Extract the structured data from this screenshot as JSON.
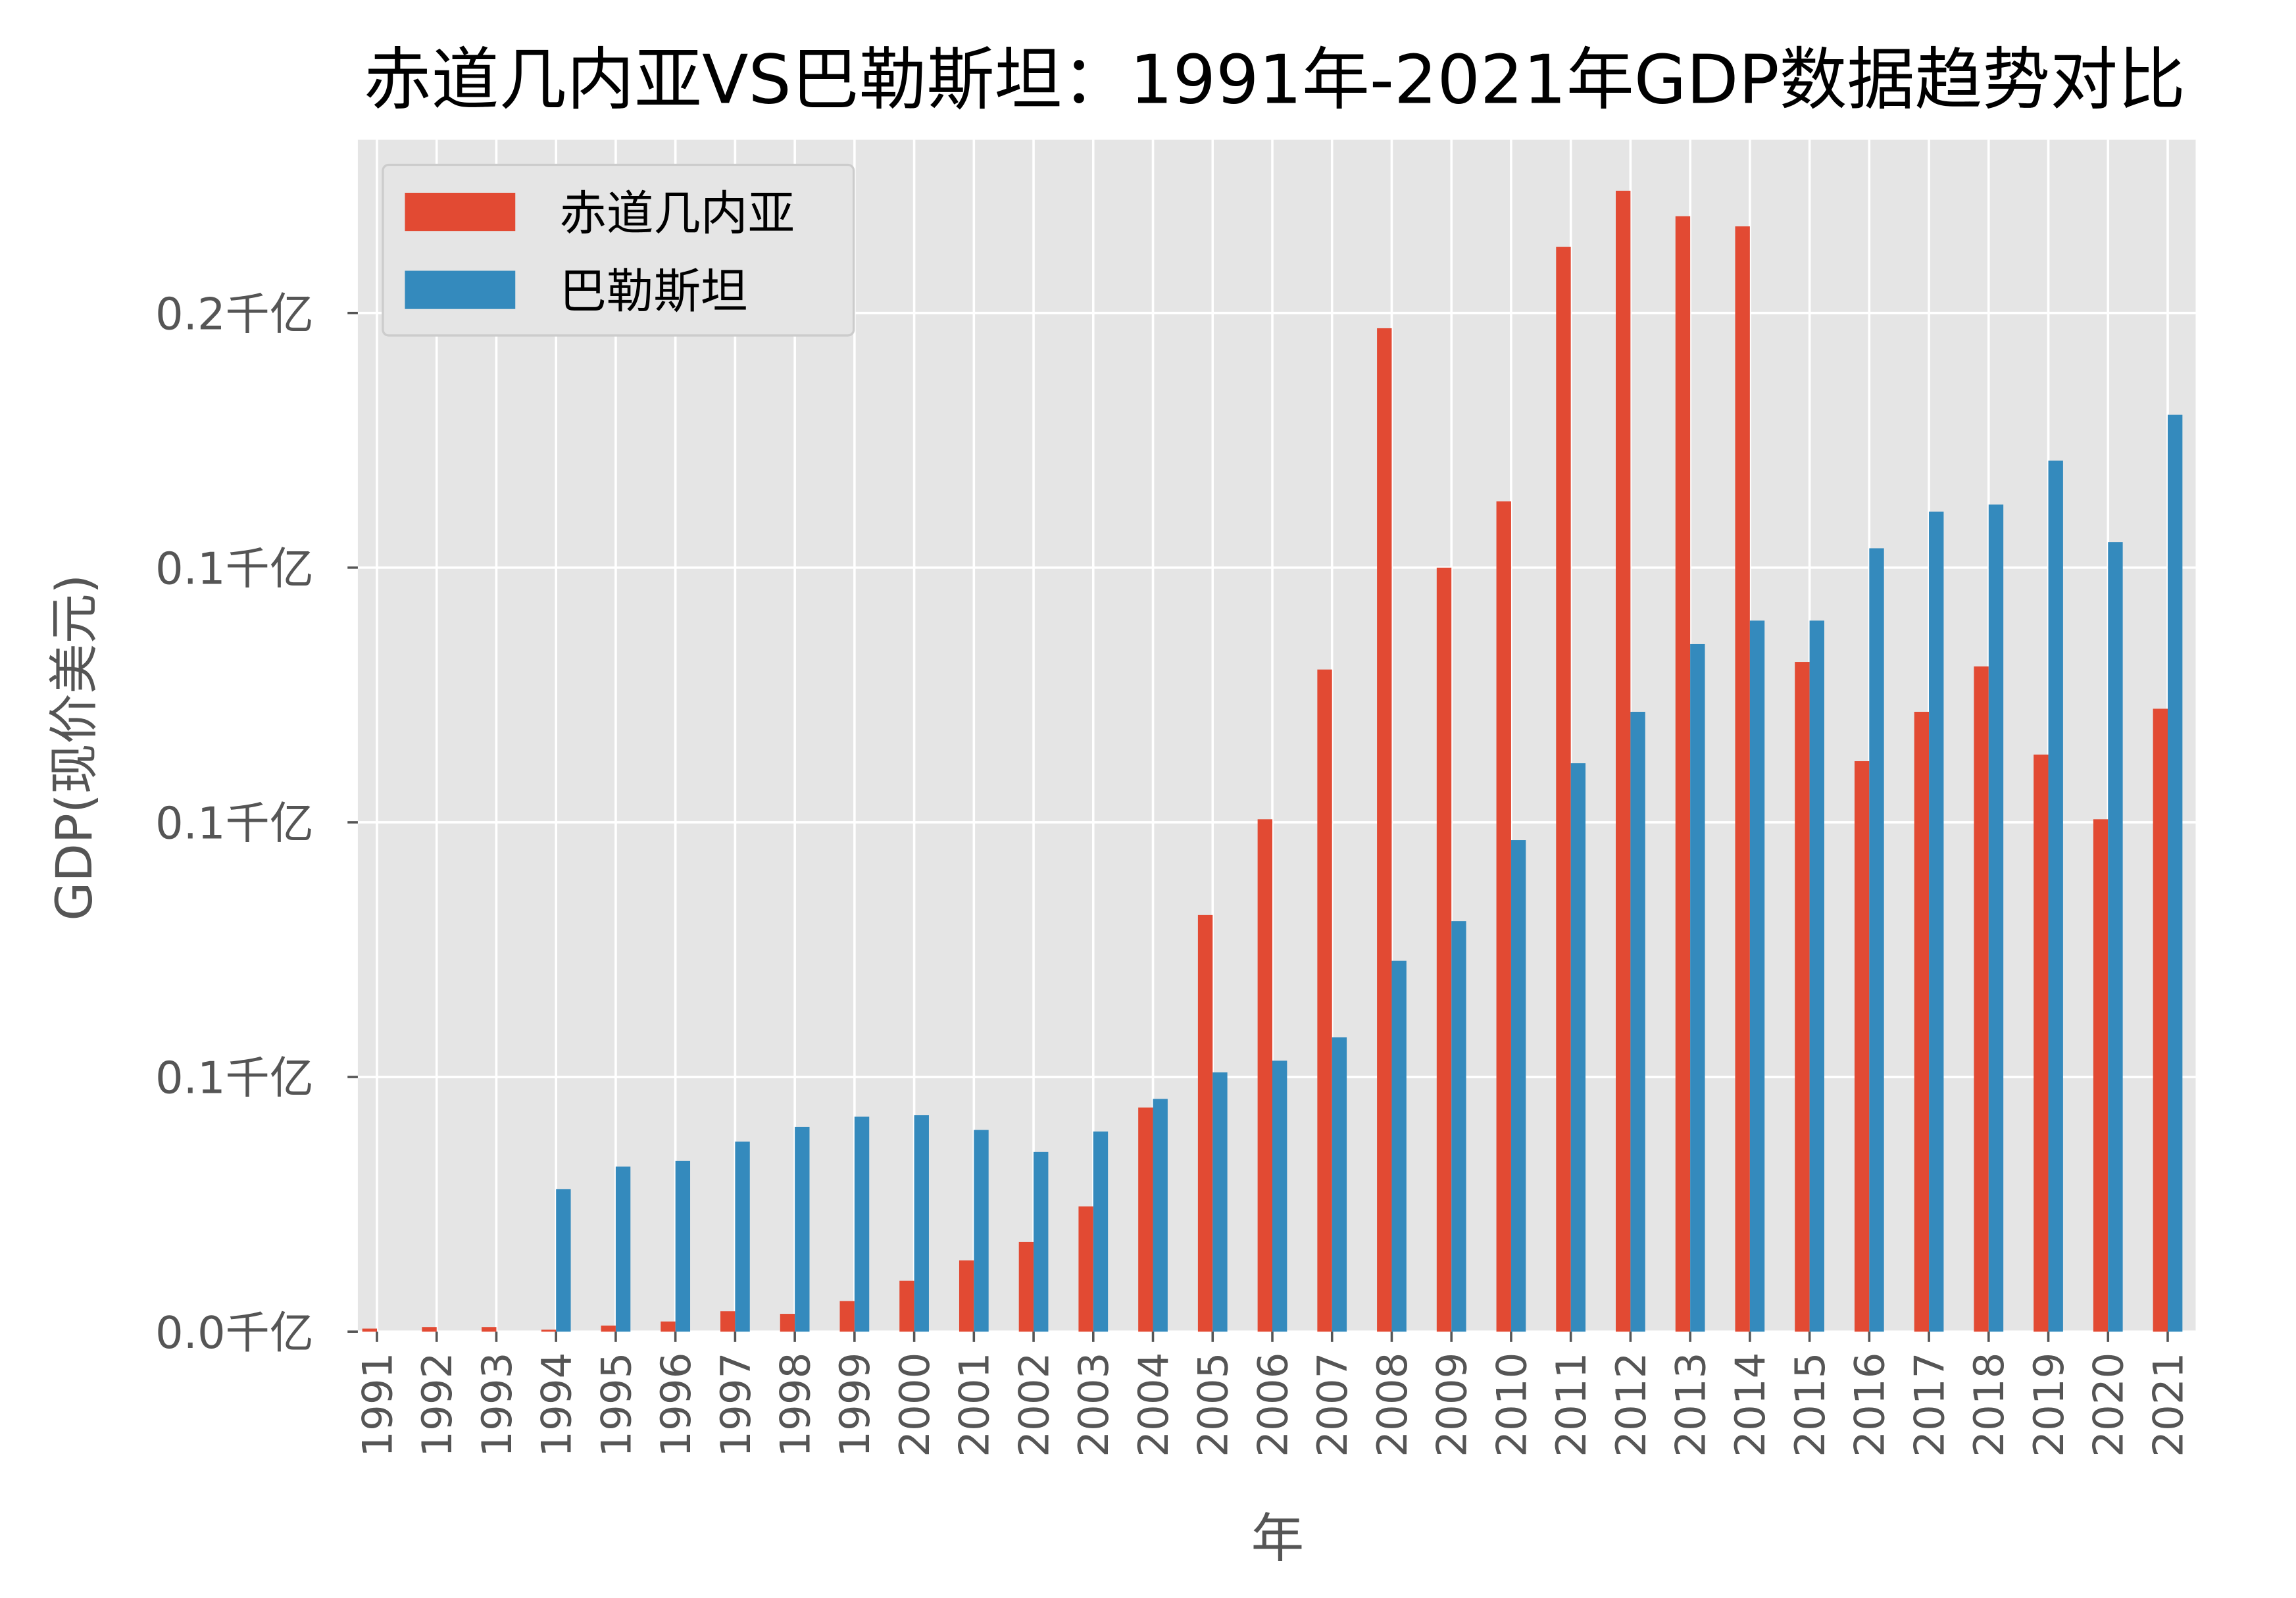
{
  "chart_data": {
    "type": "bar",
    "title": "赤道几内亚VS巴勒斯坦：1991年-2021年GDP数据趋势对比",
    "xlabel": "年",
    "ylabel": "GDP(现价美元)",
    "ylim": [
      0,
      0.234
    ],
    "yticks": [
      0,
      0.05,
      0.1,
      0.15,
      0.2
    ],
    "ytick_labels": [
      "0.0千亿",
      "0.1千亿",
      "0.1千亿",
      "0.1千亿",
      "0.2千亿"
    ],
    "grid": true,
    "legend_position": "top-left",
    "categories": [
      "1991",
      "1992",
      "1993",
      "1994",
      "1995",
      "1996",
      "1997",
      "1998",
      "1999",
      "2000",
      "2001",
      "2002",
      "2003",
      "2004",
      "2005",
      "2006",
      "2007",
      "2008",
      "2009",
      "2010",
      "2011",
      "2012",
      "2013",
      "2014",
      "2015",
      "2016",
      "2017",
      "2018",
      "2019",
      "2020",
      "2021"
    ],
    "series": [
      {
        "name": "赤道几内亚",
        "color": "#E24A33",
        "values": [
          0.0006,
          0.0009,
          0.0009,
          0.0004,
          0.0012,
          0.002,
          0.004,
          0.0035,
          0.006,
          0.01,
          0.014,
          0.0176,
          0.0246,
          0.044,
          0.0818,
          0.1006,
          0.13,
          0.197,
          0.15,
          0.163,
          0.213,
          0.224,
          0.219,
          0.217,
          0.1315,
          0.112,
          0.1217,
          0.1306,
          0.1133,
          0.1006,
          0.1223
        ]
      },
      {
        "name": "巴勒斯坦",
        "color": "#348ABD",
        "values": [
          0,
          0,
          0,
          0.028,
          0.0324,
          0.0335,
          0.0373,
          0.0402,
          0.0422,
          0.0425,
          0.0396,
          0.0353,
          0.0393,
          0.0457,
          0.0509,
          0.0532,
          0.0578,
          0.0728,
          0.0806,
          0.0965,
          0.1116,
          0.1217,
          0.135,
          0.1396,
          0.1396,
          0.1538,
          0.161,
          0.1624,
          0.171,
          0.155,
          0.18
        ]
      }
    ]
  }
}
